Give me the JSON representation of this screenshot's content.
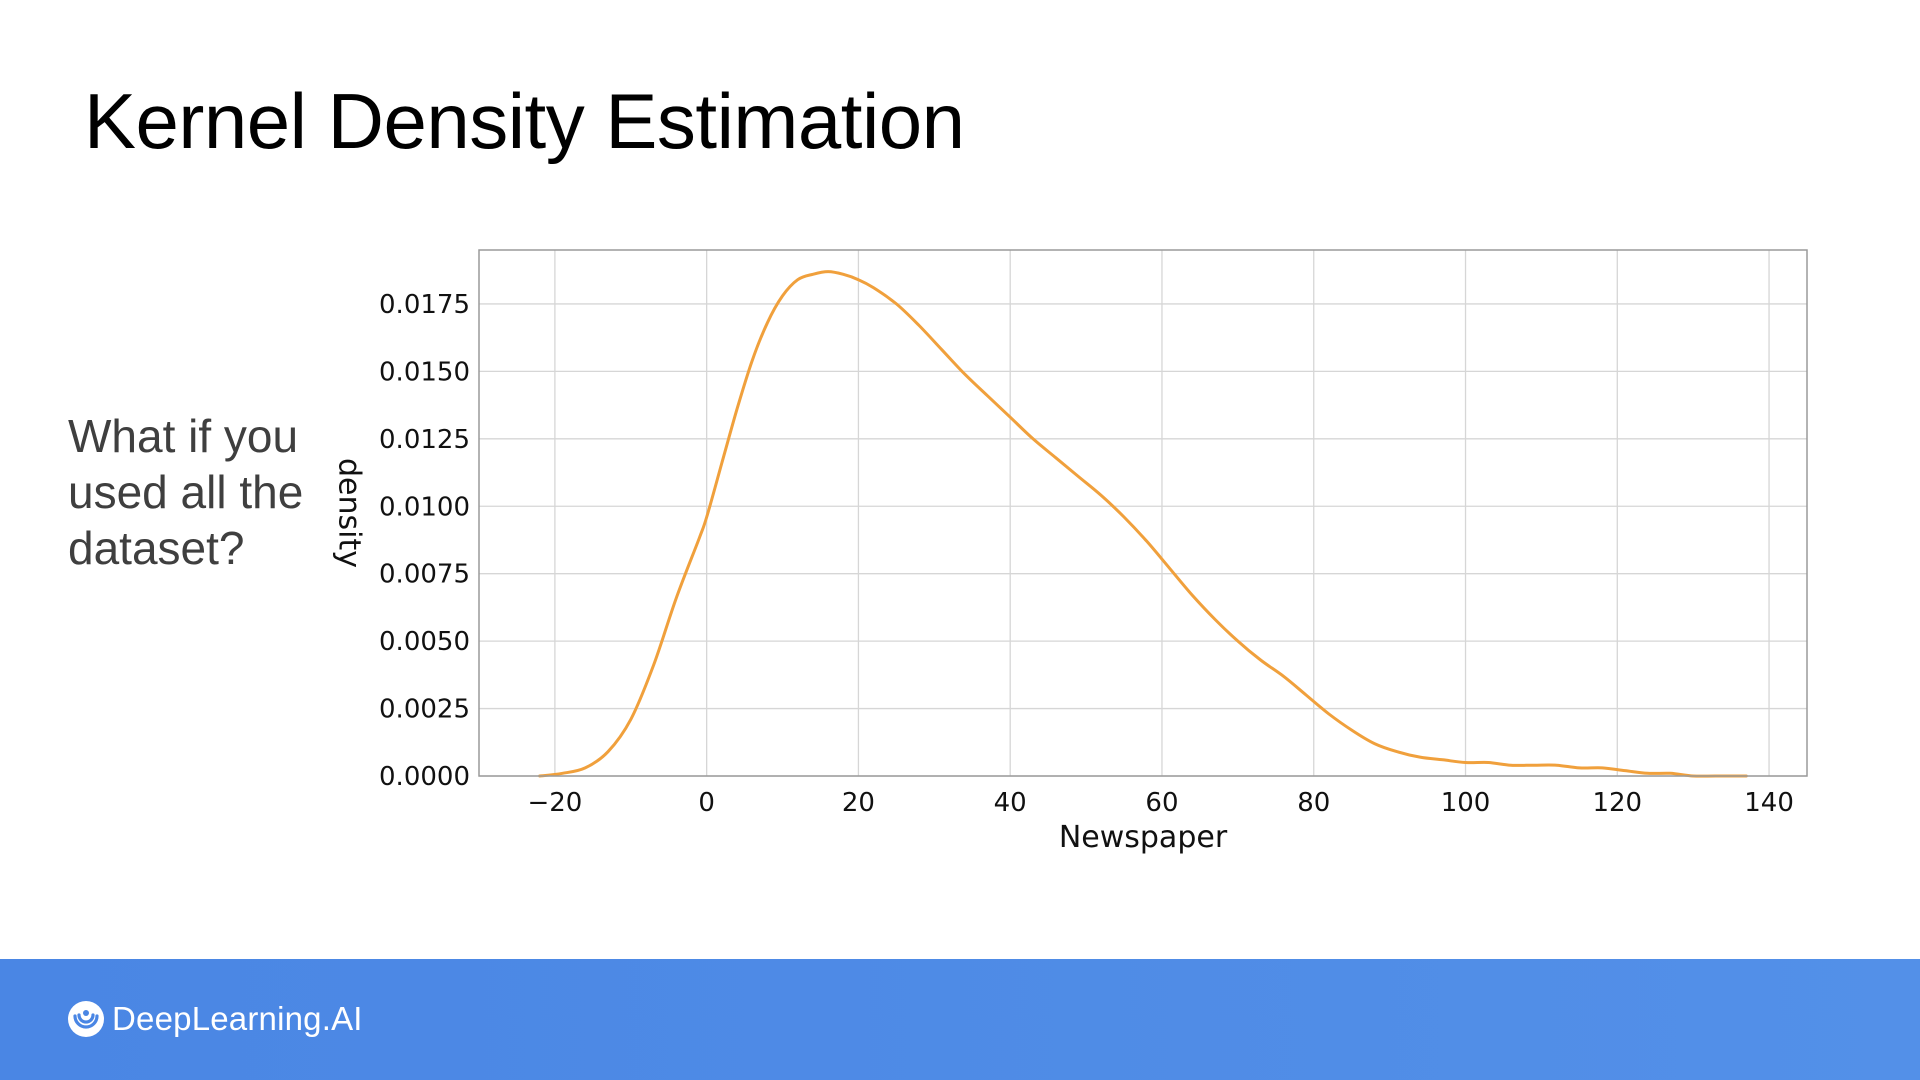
{
  "slide": {
    "title": "Kernel Density Estimation",
    "question": "What if you used all the dataset?"
  },
  "footer": {
    "brand": "DeepLearning.AI",
    "icon": "deeplearning-logo-icon",
    "background": "#4a86e4"
  },
  "chart_data": {
    "type": "line",
    "xlabel": "Newspaper",
    "ylabel": "density",
    "xlim": [
      -30,
      145
    ],
    "ylim": [
      0,
      0.0195
    ],
    "xticks": [
      -20,
      0,
      20,
      40,
      60,
      80,
      100,
      120,
      140
    ],
    "xtick_labels": [
      "−20",
      "0",
      "20",
      "40",
      "60",
      "80",
      "100",
      "120",
      "140"
    ],
    "yticks": [
      0,
      0.0025,
      0.005,
      0.0075,
      0.01,
      0.0125,
      0.015,
      0.0175
    ],
    "ytick_labels": [
      "0.0000",
      "0.0025",
      "0.0050",
      "0.0075",
      "0.0100",
      "0.0125",
      "0.0150",
      "0.0175"
    ],
    "grid": true,
    "line_color": "#f0a03c",
    "series": [
      {
        "x": [
          -22,
          -19,
          -16,
          -13,
          -10,
          -7,
          -4,
          -1,
          0,
          2,
          4,
          6,
          8,
          10,
          12,
          14,
          16,
          18,
          20,
          22,
          25,
          28,
          31,
          34,
          37,
          40,
          43,
          46,
          49,
          52,
          55,
          58,
          61,
          64,
          67,
          70,
          73,
          76,
          79,
          82,
          85,
          88,
          91,
          94,
          97,
          100,
          103,
          106,
          109,
          112,
          115,
          118,
          121,
          124,
          127,
          130,
          133,
          137
        ],
        "y": [
          0.0,
          0.0001,
          0.0003,
          0.0009,
          0.0021,
          0.0041,
          0.0066,
          0.0088,
          0.0096,
          0.0116,
          0.0136,
          0.0154,
          0.0168,
          0.0178,
          0.0184,
          0.0186,
          0.0187,
          0.0186,
          0.0184,
          0.0181,
          0.0175,
          0.0167,
          0.0158,
          0.0149,
          0.0141,
          0.0133,
          0.0125,
          0.0118,
          0.0111,
          0.0104,
          0.0096,
          0.0087,
          0.0077,
          0.0067,
          0.0058,
          0.005,
          0.0043,
          0.0037,
          0.003,
          0.0023,
          0.0017,
          0.0012,
          0.0009,
          0.0007,
          0.0006,
          0.0005,
          0.0005,
          0.0004,
          0.0004,
          0.0004,
          0.0003,
          0.0003,
          0.0002,
          0.0001,
          0.0001,
          0.0,
          0.0,
          0.0
        ]
      }
    ]
  }
}
